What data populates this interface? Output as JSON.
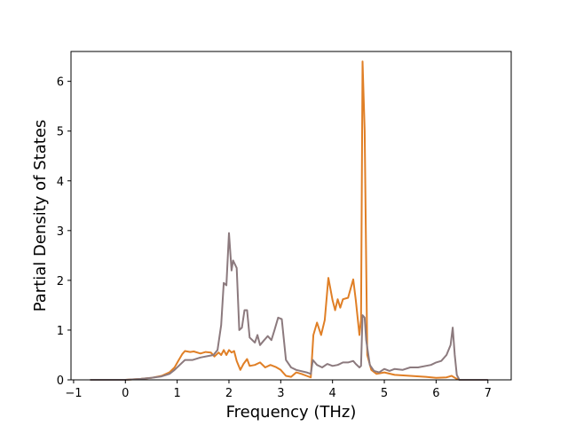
{
  "chart_data": {
    "type": "line",
    "title": "",
    "xlabel": "Frequency (THz)",
    "ylabel": "Partial Density of States",
    "xlim": [
      -1.05,
      7.45
    ],
    "ylim": [
      0,
      6.6
    ],
    "xticks": [
      -1,
      0,
      1,
      2,
      3,
      4,
      5,
      6,
      7
    ],
    "yticks": [
      0,
      1,
      2,
      3,
      4,
      5,
      6
    ],
    "grid": false,
    "legend": "none",
    "series": [
      {
        "color": "#e07f26",
        "points": [
          [
            -0.68,
            0.0
          ],
          [
            0.0,
            0.0
          ],
          [
            0.3,
            0.02
          ],
          [
            0.5,
            0.04
          ],
          [
            0.7,
            0.08
          ],
          [
            0.85,
            0.15
          ],
          [
            0.95,
            0.25
          ],
          [
            1.02,
            0.38
          ],
          [
            1.1,
            0.52
          ],
          [
            1.15,
            0.58
          ],
          [
            1.25,
            0.56
          ],
          [
            1.32,
            0.57
          ],
          [
            1.45,
            0.53
          ],
          [
            1.55,
            0.56
          ],
          [
            1.65,
            0.55
          ],
          [
            1.72,
            0.47
          ],
          [
            1.8,
            0.55
          ],
          [
            1.85,
            0.5
          ],
          [
            1.9,
            0.6
          ],
          [
            1.95,
            0.5
          ],
          [
            2.0,
            0.6
          ],
          [
            2.05,
            0.55
          ],
          [
            2.1,
            0.58
          ],
          [
            2.15,
            0.38
          ],
          [
            2.22,
            0.2
          ],
          [
            2.28,
            0.32
          ],
          [
            2.35,
            0.42
          ],
          [
            2.4,
            0.28
          ],
          [
            2.5,
            0.3
          ],
          [
            2.6,
            0.35
          ],
          [
            2.7,
            0.25
          ],
          [
            2.8,
            0.3
          ],
          [
            2.9,
            0.26
          ],
          [
            3.0,
            0.2
          ],
          [
            3.1,
            0.08
          ],
          [
            3.2,
            0.06
          ],
          [
            3.3,
            0.15
          ],
          [
            3.4,
            0.12
          ],
          [
            3.5,
            0.08
          ],
          [
            3.58,
            0.05
          ],
          [
            3.63,
            0.9
          ],
          [
            3.7,
            1.15
          ],
          [
            3.78,
            0.9
          ],
          [
            3.85,
            1.2
          ],
          [
            3.92,
            2.05
          ],
          [
            4.0,
            1.6
          ],
          [
            4.05,
            1.4
          ],
          [
            4.1,
            1.62
          ],
          [
            4.15,
            1.45
          ],
          [
            4.2,
            1.62
          ],
          [
            4.3,
            1.65
          ],
          [
            4.4,
            2.02
          ],
          [
            4.45,
            1.6
          ],
          [
            4.52,
            0.9
          ],
          [
            4.55,
            1.2
          ],
          [
            4.58,
            6.4
          ],
          [
            4.62,
            5.0
          ],
          [
            4.67,
            0.5
          ],
          [
            4.75,
            0.2
          ],
          [
            4.85,
            0.12
          ],
          [
            5.0,
            0.15
          ],
          [
            5.2,
            0.1
          ],
          [
            5.5,
            0.08
          ],
          [
            5.8,
            0.06
          ],
          [
            6.0,
            0.04
          ],
          [
            6.2,
            0.05
          ],
          [
            6.3,
            0.08
          ],
          [
            6.38,
            0.03
          ],
          [
            6.45,
            0.0
          ],
          [
            7.0,
            0.0
          ]
        ]
      },
      {
        "color": "#8c7a7e",
        "points": [
          [
            -0.68,
            0.0
          ],
          [
            0.0,
            0.0
          ],
          [
            0.3,
            0.02
          ],
          [
            0.5,
            0.04
          ],
          [
            0.7,
            0.07
          ],
          [
            0.85,
            0.12
          ],
          [
            0.95,
            0.2
          ],
          [
            1.05,
            0.3
          ],
          [
            1.15,
            0.4
          ],
          [
            1.3,
            0.4
          ],
          [
            1.45,
            0.45
          ],
          [
            1.6,
            0.48
          ],
          [
            1.7,
            0.5
          ],
          [
            1.78,
            0.6
          ],
          [
            1.85,
            1.1
          ],
          [
            1.9,
            1.95
          ],
          [
            1.95,
            1.9
          ],
          [
            2.0,
            2.95
          ],
          [
            2.05,
            2.2
          ],
          [
            2.08,
            2.4
          ],
          [
            2.15,
            2.25
          ],
          [
            2.2,
            1.0
          ],
          [
            2.25,
            1.05
          ],
          [
            2.3,
            1.4
          ],
          [
            2.35,
            1.4
          ],
          [
            2.4,
            0.85
          ],
          [
            2.5,
            0.75
          ],
          [
            2.55,
            0.9
          ],
          [
            2.6,
            0.7
          ],
          [
            2.68,
            0.8
          ],
          [
            2.75,
            0.88
          ],
          [
            2.82,
            0.8
          ],
          [
            2.88,
            1.0
          ],
          [
            2.95,
            1.25
          ],
          [
            3.02,
            1.22
          ],
          [
            3.1,
            0.4
          ],
          [
            3.2,
            0.25
          ],
          [
            3.3,
            0.2
          ],
          [
            3.5,
            0.15
          ],
          [
            3.58,
            0.12
          ],
          [
            3.62,
            0.4
          ],
          [
            3.7,
            0.3
          ],
          [
            3.8,
            0.25
          ],
          [
            3.9,
            0.32
          ],
          [
            4.0,
            0.28
          ],
          [
            4.1,
            0.3
          ],
          [
            4.2,
            0.35
          ],
          [
            4.3,
            0.35
          ],
          [
            4.4,
            0.38
          ],
          [
            4.45,
            0.32
          ],
          [
            4.52,
            0.25
          ],
          [
            4.55,
            0.28
          ],
          [
            4.58,
            1.3
          ],
          [
            4.62,
            1.25
          ],
          [
            4.65,
            0.8
          ],
          [
            4.72,
            0.3
          ],
          [
            4.8,
            0.18
          ],
          [
            4.9,
            0.15
          ],
          [
            5.0,
            0.22
          ],
          [
            5.1,
            0.18
          ],
          [
            5.2,
            0.22
          ],
          [
            5.35,
            0.2
          ],
          [
            5.5,
            0.25
          ],
          [
            5.65,
            0.25
          ],
          [
            5.8,
            0.28
          ],
          [
            5.9,
            0.3
          ],
          [
            6.0,
            0.35
          ],
          [
            6.1,
            0.38
          ],
          [
            6.2,
            0.5
          ],
          [
            6.28,
            0.7
          ],
          [
            6.32,
            1.05
          ],
          [
            6.36,
            0.5
          ],
          [
            6.4,
            0.1
          ],
          [
            6.45,
            0.0
          ],
          [
            7.0,
            0.0
          ]
        ]
      }
    ]
  }
}
